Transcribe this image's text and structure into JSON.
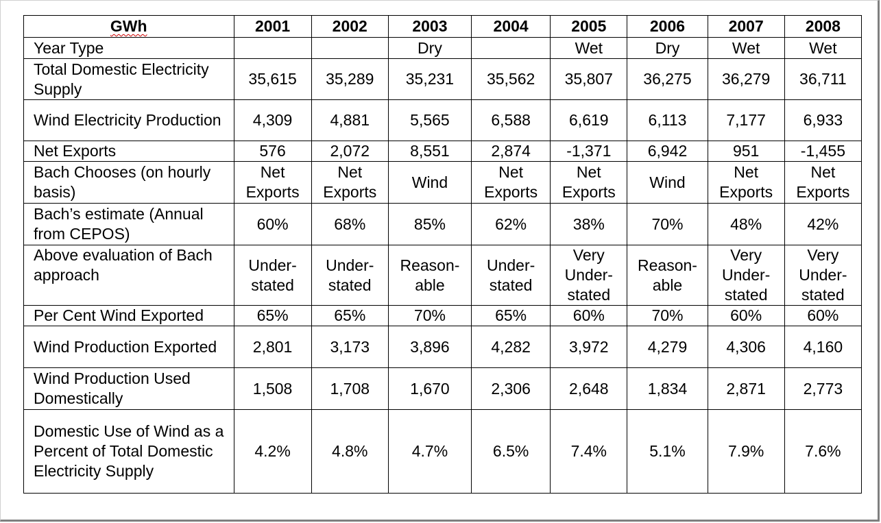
{
  "table": {
    "corner": "GWh",
    "years": [
      "2001",
      "2002",
      "2003",
      "2004",
      "2005",
      "2006",
      "2007",
      "2008"
    ],
    "rows": [
      {
        "label": "Year Type",
        "values": [
          "",
          "",
          "Dry",
          "",
          "Wet",
          "Dry",
          "Wet",
          "Wet"
        ]
      },
      {
        "label": "Total Domestic Electricity Supply",
        "values": [
          "35,615",
          "35,289",
          "35,231",
          "35,562",
          "35,807",
          "36,275",
          "36,279",
          "36,711"
        ]
      },
      {
        "label": "Wind Electricity Production",
        "values": [
          "4,309",
          "4,881",
          "5,565",
          "6,588",
          "6,619",
          "6,113",
          "7,177",
          "6,933"
        ]
      },
      {
        "label": "Net Exports",
        "values": [
          "576",
          "2,072",
          "8,551",
          "2,874",
          "-1,371",
          "6,942",
          "951",
          "-1,455"
        ]
      },
      {
        "label": "Bach Chooses (on hourly basis)",
        "values": [
          "Net Exports",
          "Net Exports",
          "Wind",
          "Net Exports",
          "Net Exports",
          "Wind",
          "Net Exports",
          "Net Exports"
        ]
      },
      {
        "label": "Bach’s estimate (Annual from CEPOS)",
        "values": [
          "60%",
          "68%",
          "85%",
          "62%",
          "38%",
          "70%",
          "48%",
          "42%"
        ]
      },
      {
        "label": "Above evaluation of Bach approach",
        "values": [
          "Under-stated",
          "Under-stated",
          "Reason-able",
          "Under-stated",
          "Very Under-stated",
          "Reason-able",
          "Very Under-stated",
          "Very Under-stated"
        ]
      },
      {
        "label": "Per Cent Wind Exported",
        "values": [
          "65%",
          "65%",
          "70%",
          "65%",
          "60%",
          "70%",
          "60%",
          "60%"
        ]
      },
      {
        "label": "Wind Production Exported",
        "values": [
          "2,801",
          "3,173",
          "3,896",
          "4,282",
          "3,972",
          "4,279",
          "4,306",
          "4,160"
        ]
      },
      {
        "label": "Wind Production Used Domestically",
        "values": [
          "1,508",
          "1,708",
          "1,670",
          "2,306",
          "2,648",
          "1,834",
          "2,871",
          "2,773"
        ]
      },
      {
        "label": "Domestic Use of Wind as a Percent of Total Domestic Electricity Supply",
        "values": [
          "4.2%",
          "4.8%",
          "4.7%",
          "6.5%",
          "7.4%",
          "5.1%",
          "7.9%",
          "7.6%"
        ]
      }
    ]
  }
}
